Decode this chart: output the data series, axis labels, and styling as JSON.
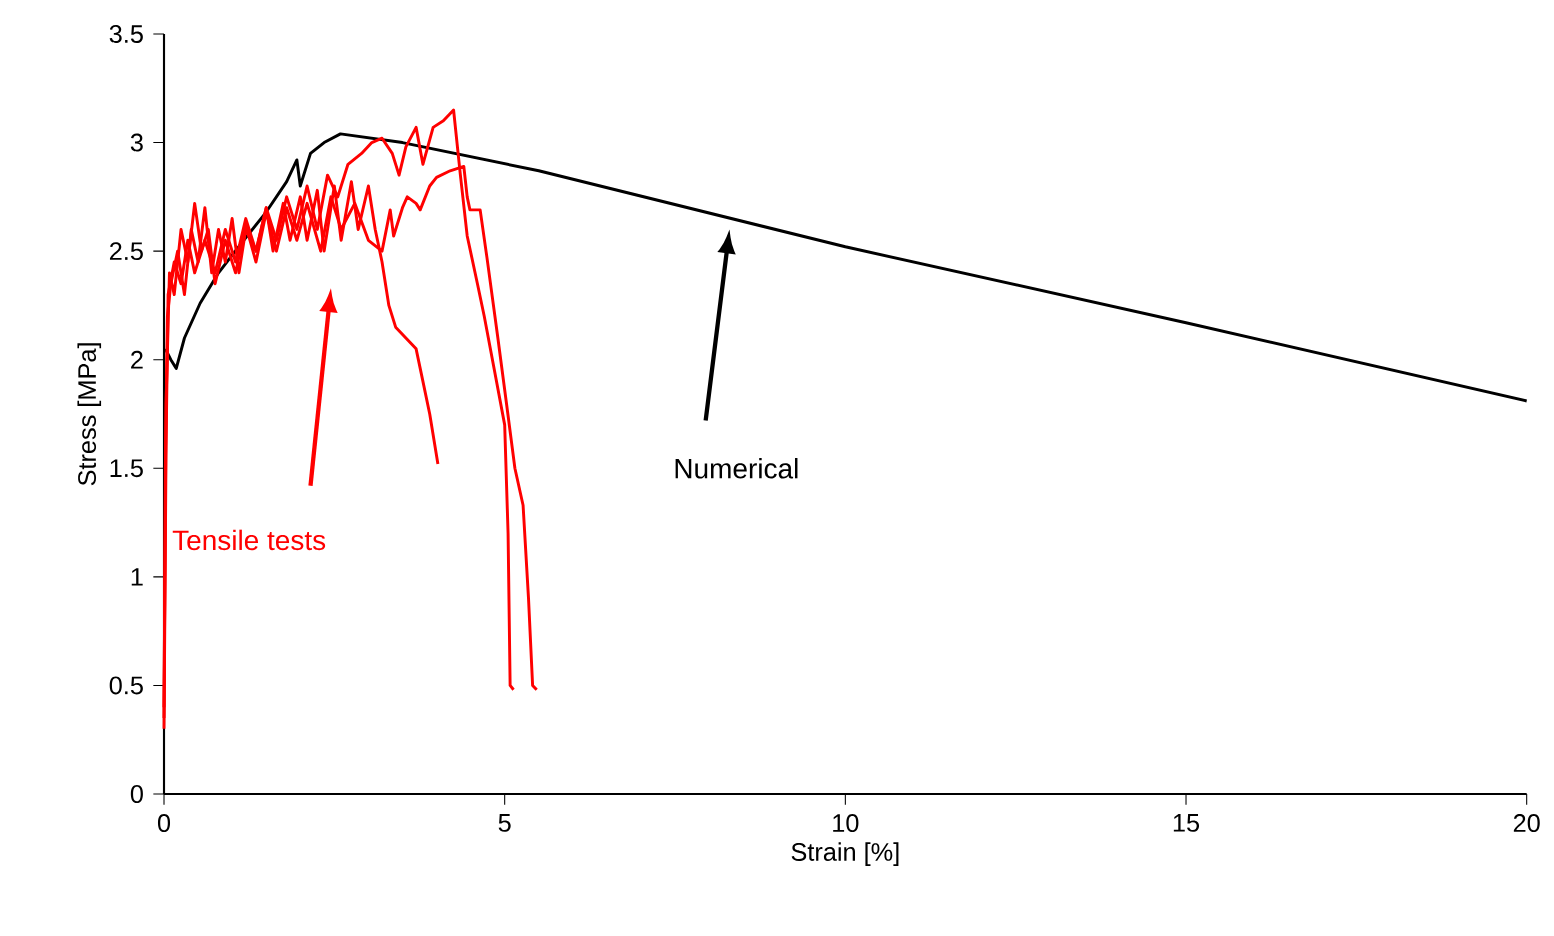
{
  "chart_data": {
    "type": "line",
    "xlabel": "Strain [%]",
    "ylabel": "Stress [MPa]",
    "xlim": [
      0,
      20
    ],
    "xticks": [
      0,
      5,
      10,
      15,
      20
    ],
    "ylim": [
      0,
      3.5
    ],
    "yticks": [
      0,
      0.5,
      1,
      1.5,
      2,
      2.5,
      3,
      3.5
    ],
    "marker": "none",
    "line_style": "solid",
    "annotations": [
      "Tensile tests",
      "Numerical"
    ],
    "series": [
      {
        "color": "#000000",
        "x": [
          0.02,
          0.1,
          0.18,
          0.3,
          0.53,
          0.8,
          1.12,
          1.5,
          1.8,
          1.95,
          2.0,
          2.15,
          2.35,
          2.59,
          3.5,
          5.5,
          10,
          15,
          20
        ],
        "values": [
          2.05,
          2.0,
          1.96,
          2.1,
          2.26,
          2.4,
          2.53,
          2.68,
          2.82,
          2.92,
          2.8,
          2.95,
          3.0,
          3.04,
          3.0,
          2.87,
          2.52,
          2.17,
          1.81
        ]
      },
      {
        "color": "#ff0000",
        "x": [
          0,
          0.02,
          0.05,
          0.1,
          0.2,
          0.3,
          0.4,
          0.5,
          0.6,
          0.7,
          0.8,
          0.9,
          1.0,
          1.1,
          1.2,
          1.35,
          1.5,
          1.6,
          1.75,
          1.85,
          2.0,
          2.1,
          2.25,
          2.35,
          2.5,
          2.6,
          2.75,
          2.85,
          3.0,
          3.1,
          3.2,
          3.3,
          3.4,
          3.55,
          3.7,
          3.8,
          3.9,
          4.02
        ],
        "values": [
          0.35,
          1.5,
          2.2,
          2.35,
          2.5,
          2.3,
          2.6,
          2.45,
          2.7,
          2.4,
          2.6,
          2.45,
          2.65,
          2.4,
          2.6,
          2.5,
          2.7,
          2.5,
          2.72,
          2.55,
          2.75,
          2.55,
          2.78,
          2.5,
          2.8,
          2.55,
          2.82,
          2.6,
          2.8,
          2.6,
          2.45,
          2.25,
          2.15,
          2.1,
          2.05,
          1.9,
          1.75,
          1.52
        ]
      },
      {
        "color": "#ff0000",
        "x": [
          0,
          0.03,
          0.06,
          0.15,
          0.25,
          0.35,
          0.45,
          0.6,
          0.75,
          0.9,
          1.05,
          1.2,
          1.35,
          1.5,
          1.65,
          1.8,
          1.95,
          2.1,
          2.25,
          2.4,
          2.55,
          2.7,
          2.9,
          3.05,
          3.2,
          3.35,
          3.45,
          3.55,
          3.7,
          3.8,
          3.95,
          4.1,
          4.25,
          4.35,
          4.45,
          4.6,
          4.7,
          4.85,
          5.0,
          5.05,
          5.08,
          5.13
        ],
        "values": [
          0.3,
          1.6,
          2.3,
          2.45,
          2.35,
          2.55,
          2.4,
          2.55,
          2.4,
          2.6,
          2.45,
          2.65,
          2.5,
          2.7,
          2.55,
          2.75,
          2.6,
          2.8,
          2.6,
          2.85,
          2.75,
          2.9,
          2.95,
          3.0,
          3.02,
          2.95,
          2.85,
          2.98,
          3.07,
          2.9,
          3.07,
          3.1,
          3.15,
          2.85,
          2.57,
          2.35,
          2.2,
          1.95,
          1.7,
          1.2,
          0.5,
          0.48
        ]
      },
      {
        "color": "#ff0000",
        "x": [
          0,
          0.03,
          0.08,
          0.15,
          0.25,
          0.35,
          0.45,
          0.55,
          0.65,
          0.75,
          0.9,
          1.05,
          1.2,
          1.35,
          1.5,
          1.65,
          1.8,
          1.95,
          2.1,
          2.3,
          2.45,
          2.6,
          2.8,
          3.0,
          3.2,
          3.32,
          3.37,
          3.5,
          3.57,
          3.7,
          3.76,
          3.9,
          4.0,
          4.2,
          4.4,
          4.45,
          4.49,
          4.64,
          4.74,
          4.9,
          5.03,
          5.15,
          5.27,
          5.35,
          5.41,
          5.47
        ],
        "values": [
          0.4,
          1.8,
          2.4,
          2.3,
          2.6,
          2.45,
          2.72,
          2.5,
          2.6,
          2.35,
          2.55,
          2.4,
          2.62,
          2.45,
          2.68,
          2.5,
          2.7,
          2.55,
          2.72,
          2.5,
          2.75,
          2.6,
          2.72,
          2.55,
          2.5,
          2.69,
          2.57,
          2.7,
          2.75,
          2.72,
          2.69,
          2.8,
          2.84,
          2.87,
          2.89,
          2.75,
          2.69,
          2.69,
          2.47,
          2.1,
          1.79,
          1.5,
          1.33,
          0.9,
          0.5,
          0.48
        ]
      }
    ]
  }
}
